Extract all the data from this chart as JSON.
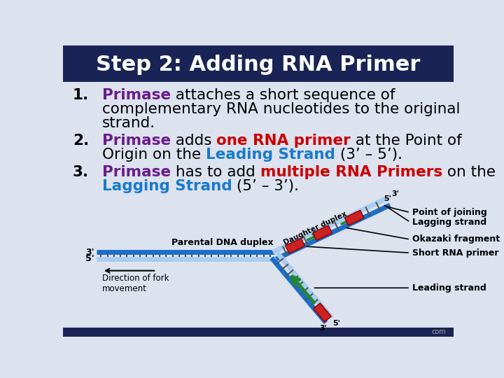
{
  "title": "Step 2: Adding RNA Primer",
  "title_color": "#ffffff",
  "title_bg_color": "#1a2355",
  "bg_color": "#dce2ee",
  "footer_bg": "#1a2355",
  "strand_blue_dark": "#1a6fcc",
  "strand_blue_light": "#aaccee",
  "strand_green": "#228833",
  "primer_red": "#cc2222",
  "diagram_labels": {
    "parental": "Parental DNA duplex",
    "daughter": "Daughter duplex",
    "direction": "Direction of fork\nmovement",
    "point_joining": "Point of joining",
    "lagging": "Lagging strand",
    "okazaki": "Okazaki fragment",
    "short_rna": "Short RNA primer",
    "leading": "Leading strand"
  },
  "text_items": [
    {
      "number": "1.",
      "segments": [
        {
          "t": "Primase",
          "c": "#6a1d8a",
          "b": true
        },
        {
          "t": " attaches a short sequence of",
          "c": "#000000",
          "b": false
        },
        {
          "t": "\ncomplementary RNA nucleotides to the original",
          "c": "#000000",
          "b": false
        },
        {
          "t": "\nstrand.",
          "c": "#000000",
          "b": false
        }
      ]
    },
    {
      "number": "2.",
      "segments": [
        {
          "t": "Primase",
          "c": "#6a1d8a",
          "b": true
        },
        {
          "t": " adds ",
          "c": "#000000",
          "b": false
        },
        {
          "t": "one RNA primer",
          "c": "#cc0000",
          "b": true
        },
        {
          "t": " at the Point of",
          "c": "#000000",
          "b": false
        },
        {
          "t": "\nOrigin on the ",
          "c": "#000000",
          "b": false
        },
        {
          "t": "Leading Strand",
          "c": "#1a7acc",
          "b": true
        },
        {
          "t": " (3’ – 5’).",
          "c": "#000000",
          "b": false
        }
      ]
    },
    {
      "number": "3.",
      "segments": [
        {
          "t": "Primase",
          "c": "#6a1d8a",
          "b": true
        },
        {
          "t": " has to add ",
          "c": "#000000",
          "b": false
        },
        {
          "t": "multiple RNA Primers",
          "c": "#cc0000",
          "b": true
        },
        {
          "t": " on the",
          "c": "#000000",
          "b": false
        },
        {
          "t": "\nLagging Strand",
          "c": "#1a7acc",
          "b": true
        },
        {
          "t": " (5’ – 3’).",
          "c": "#000000",
          "b": false
        }
      ]
    }
  ]
}
